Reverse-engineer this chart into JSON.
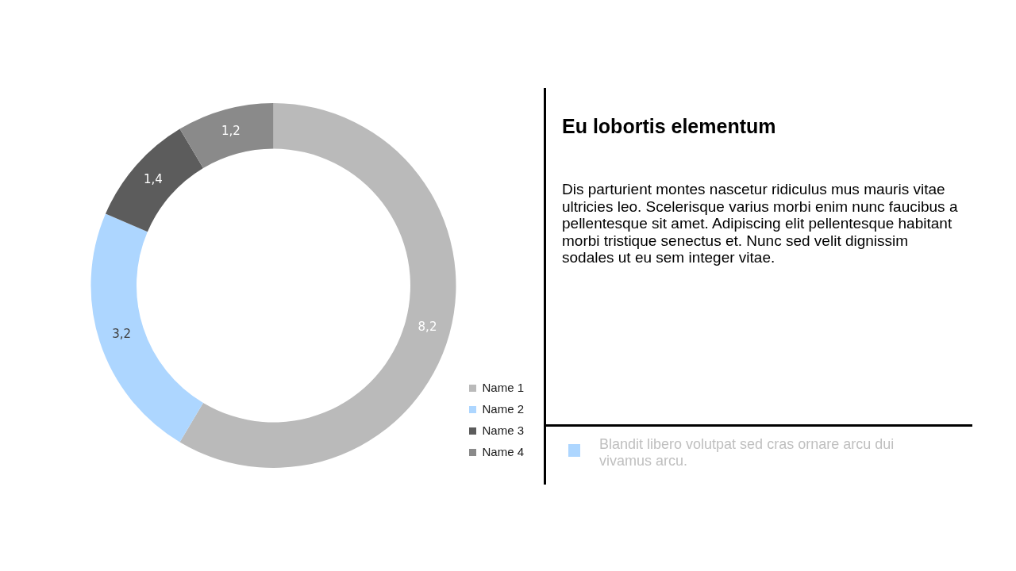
{
  "chart_data": [
    {
      "type": "donut",
      "categories": [
        "Name 1",
        "Name 2",
        "Name 3",
        "Name 4"
      ],
      "values": [
        8.2,
        3.2,
        1.4,
        1.2
      ],
      "colors": [
        "#bababa",
        "#add6ff",
        "#5c5c5c",
        "#8a8a8a"
      ],
      "value_labels": [
        "8,2",
        "3,2",
        "1,4",
        "1,2"
      ],
      "legend": "bottom right"
    },
    {
      "type": "other",
      "title": "Eu lobortis elementum",
      "annotations": [
        "Dis parturient montes nascetur ridiculus mus mauris vitae ultricies leo. Scelerisque varius morbi enim nunc faucibus a pellentesque sit amet. Adipiscing elit pellentesque habitant morbi tristique senectus et. Nunc sed velit dignissim sodales ut eu sem integer vitae.",
        "Blandit libero volutpat sed cras ornare arcu dui vivamus arcu."
      ]
    }
  ]
}
